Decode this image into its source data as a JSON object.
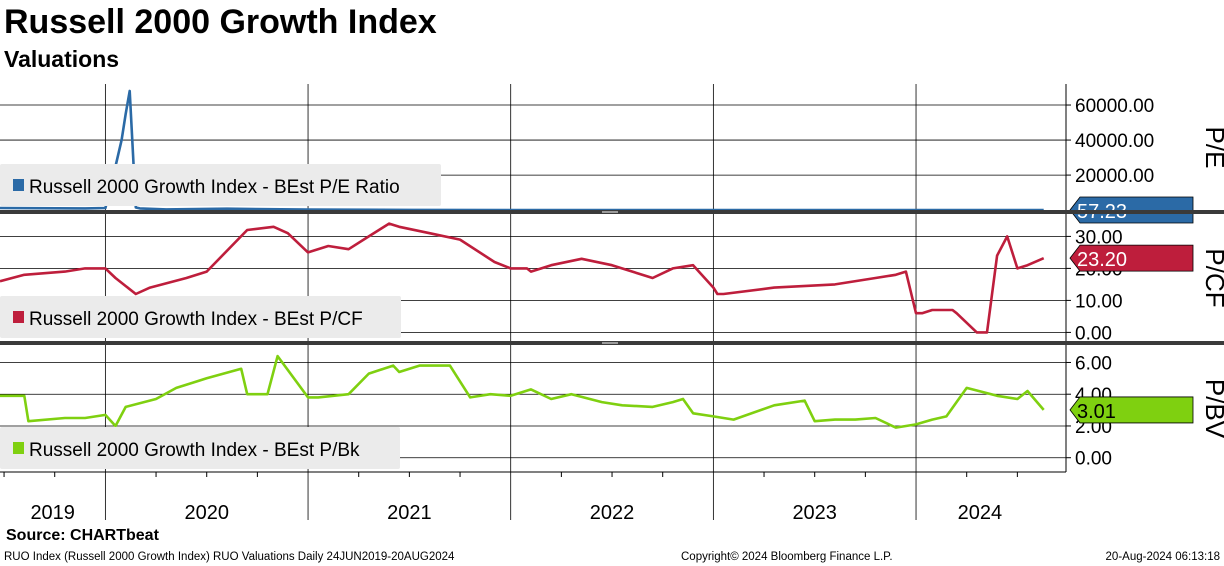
{
  "header": {
    "title": "Russell 2000 Growth Index",
    "subtitle": "Valuations"
  },
  "footer": {
    "source": "Source:  CHARTbeat",
    "description": "RUO Index (Russell 2000 Growth Index) RUO Valuations  Daily 24JUN2019-20AUG2024",
    "copyright": "Copyright© 2024 Bloomberg Finance L.P.",
    "timestamp": "20-Aug-2024 06:13:18"
  },
  "colors": {
    "pe": "#2b6aa6",
    "pcf": "#be1e3c",
    "pbv": "#7fd010",
    "grid": "#000000",
    "legend_bg": "#ebebeb"
  },
  "chart_data": [
    {
      "type": "line",
      "panel": "pe",
      "ylabel": "P/E",
      "legend": "Russell 2000 Growth Index - BEst P/E Ratio",
      "last_value_label": "57.23",
      "yticks": [
        20000,
        40000,
        60000
      ],
      "ytick_labels": [
        "20000.00",
        "40000.00",
        "60000.00"
      ],
      "ylim": [
        -500,
        72000
      ],
      "x": [
        2019.48,
        2019.9,
        2020.0,
        2020.02,
        2020.05,
        2020.08,
        2020.1,
        2020.12,
        2020.15,
        2020.17,
        2020.3,
        2020.6,
        2021.0,
        2021.5,
        2022.0,
        2023.0,
        2024.0,
        2024.63
      ],
      "values": [
        1200,
        1000,
        1200,
        10000,
        25000,
        40000,
        55000,
        68000,
        1500,
        1000,
        400,
        800,
        300,
        120,
        60,
        40,
        45,
        57.23
      ]
    },
    {
      "type": "line",
      "panel": "pcf",
      "ylabel": "P/CF",
      "legend": "Russell 2000 Growth Index - BEst P/CF",
      "last_value_label": "23.20",
      "yticks": [
        0,
        10,
        20,
        30
      ],
      "ytick_labels": [
        "0.00",
        "10.00",
        "20.00",
        "30.00"
      ],
      "ylim": [
        -3,
        37
      ],
      "x": [
        2019.48,
        2019.6,
        2019.8,
        2019.9,
        2020.0,
        2020.05,
        2020.15,
        2020.22,
        2020.4,
        2020.5,
        2020.7,
        2020.83,
        2020.9,
        2021.0,
        2021.1,
        2021.2,
        2021.3,
        2021.4,
        2021.45,
        2021.6,
        2021.75,
        2021.92,
        2022.0,
        2022.08,
        2022.1,
        2022.2,
        2022.35,
        2022.5,
        2022.7,
        2022.8,
        2022.9,
        2023.0,
        2023.02,
        2023.05,
        2023.3,
        2023.6,
        2023.8,
        2023.9,
        2023.95,
        2024.0,
        2024.03,
        2024.08,
        2024.1,
        2024.13,
        2024.18,
        2024.2,
        2024.3,
        2024.35,
        2024.4,
        2024.45,
        2024.5,
        2024.55,
        2024.63
      ],
      "values": [
        16,
        18,
        19,
        20,
        20,
        17,
        12,
        14,
        17,
        19,
        32,
        33,
        31,
        25,
        27,
        26,
        30,
        34,
        33,
        31,
        29,
        22,
        20,
        20,
        19,
        21,
        23,
        21,
        17,
        20,
        21,
        14,
        12,
        12,
        14,
        15,
        17,
        18,
        19,
        6,
        6,
        7,
        7,
        7,
        7,
        6,
        0,
        0,
        24,
        30,
        20,
        21,
        23.2
      ]
    },
    {
      "type": "line",
      "panel": "pbv",
      "ylabel": "P/BV",
      "legend": "Russell 2000 Growth Index - BEst P/Bk",
      "last_value_label": "3.01",
      "yticks": [
        0,
        2,
        4,
        6
      ],
      "ytick_labels": [
        "0.00",
        "2.00",
        "4.00",
        "6.00"
      ],
      "ylim": [
        -0.9,
        7.1
      ],
      "x": [
        2019.48,
        2019.6,
        2019.62,
        2019.8,
        2019.9,
        2020.0,
        2020.05,
        2020.1,
        2020.25,
        2020.35,
        2020.5,
        2020.67,
        2020.7,
        2020.8,
        2020.85,
        2021.0,
        2021.05,
        2021.2,
        2021.3,
        2021.42,
        2021.45,
        2021.55,
        2021.7,
        2021.8,
        2021.9,
        2022.0,
        2022.1,
        2022.2,
        2022.3,
        2022.45,
        2022.55,
        2022.7,
        2022.8,
        2022.85,
        2022.9,
        2023.0,
        2023.1,
        2023.3,
        2023.45,
        2023.5,
        2023.6,
        2023.7,
        2023.8,
        2023.9,
        2024.0,
        2024.08,
        2024.15,
        2024.25,
        2024.4,
        2024.5,
        2024.55,
        2024.63
      ],
      "values": [
        3.9,
        3.9,
        2.3,
        2.5,
        2.5,
        2.7,
        2.0,
        3.2,
        3.7,
        4.4,
        5.0,
        5.6,
        4.0,
        4.0,
        6.4,
        3.8,
        3.8,
        4.0,
        5.3,
        5.8,
        5.4,
        5.8,
        5.8,
        3.8,
        4.0,
        3.9,
        4.3,
        3.7,
        4.0,
        3.5,
        3.3,
        3.2,
        3.5,
        3.7,
        2.8,
        2.6,
        2.4,
        3.3,
        3.6,
        2.3,
        2.4,
        2.4,
        2.5,
        1.9,
        2.1,
        2.4,
        2.6,
        4.4,
        3.9,
        3.7,
        4.2,
        3.01
      ]
    }
  ],
  "xaxis": {
    "year_labels": [
      "2019",
      "2020",
      "2021",
      "2022",
      "2023",
      "2024"
    ],
    "year_starts": [
      2019.48,
      2020.0,
      2021.0,
      2022.0,
      2023.0,
      2024.0,
      2024.63
    ],
    "ticks": [
      2019.5,
      2019.75,
      2020.25,
      2020.5,
      2020.75,
      2021.25,
      2021.5,
      2021.75,
      2022.25,
      2022.5,
      2022.75,
      2023.25,
      2023.5,
      2023.75,
      2024.25,
      2024.5
    ]
  }
}
